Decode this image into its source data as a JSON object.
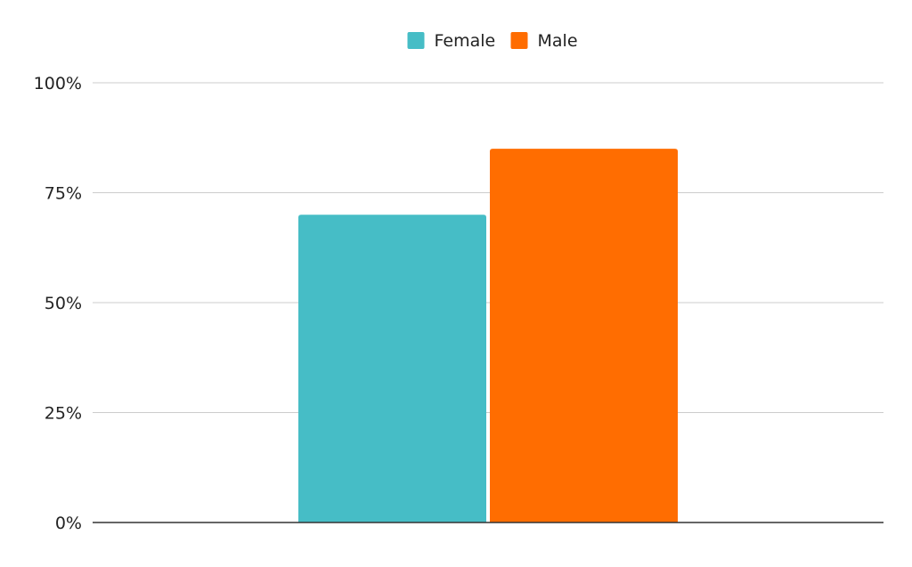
{
  "chart_data": {
    "type": "bar",
    "categories": [
      ""
    ],
    "series": [
      {
        "name": "Female",
        "values": [
          70
        ],
        "color": "#46BDC6"
      },
      {
        "name": "Male",
        "values": [
          85
        ],
        "color": "#FF6D01"
      }
    ],
    "ylim": [
      0,
      100
    ],
    "y_ticks": [
      0,
      25,
      50,
      75,
      100
    ],
    "y_tick_labels": [
      "0%",
      "25%",
      "50%",
      "75%",
      "100%"
    ],
    "grid": true,
    "legend_position": "top-center",
    "title": "",
    "xlabel": "",
    "ylabel": ""
  }
}
